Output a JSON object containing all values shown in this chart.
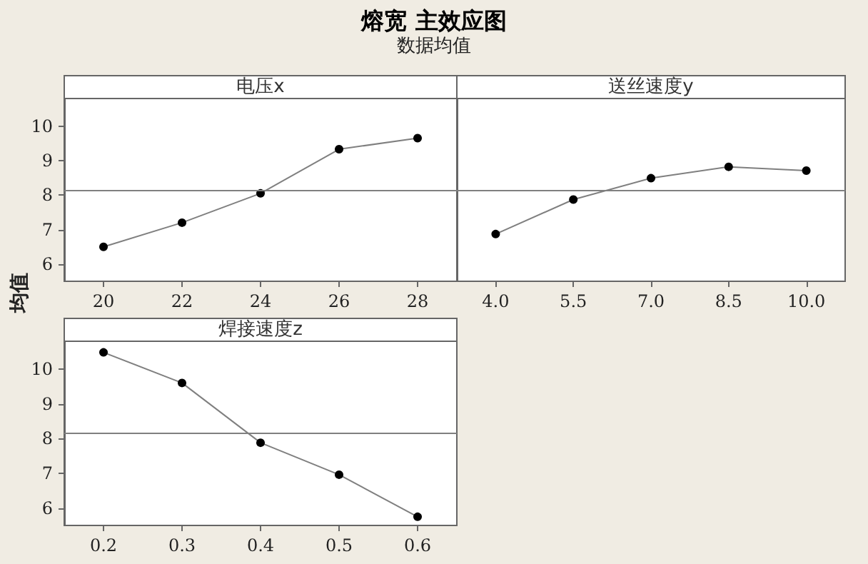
{
  "chart_data": [
    {
      "type": "other",
      "title": "熔宽 主效应图",
      "subtitle": "数据均值"
    },
    {
      "type": "line",
      "title": "电压x",
      "ylabel": "均值",
      "categories": [
        "20",
        "22",
        "24",
        "26",
        "28"
      ],
      "series": [
        {
          "color": "#000000",
          "values": [
            6.5,
            7.2,
            8.05,
            9.33,
            9.65
          ]
        }
      ],
      "ylim": [
        5.5,
        10.8
      ],
      "yticks": [
        6,
        7,
        8,
        9,
        10
      ],
      "ref_lines": [
        {
          "axis": "y",
          "value": 8.15,
          "color": "#808080"
        }
      ],
      "marker": "circle",
      "grid": false
    },
    {
      "type": "line",
      "title": "送丝速度y",
      "categories": [
        "4.0",
        "5.5",
        "7.0",
        "8.5",
        "10.0"
      ],
      "series": [
        {
          "color": "#000000",
          "values": [
            6.87,
            7.87,
            8.49,
            8.82,
            8.71
          ]
        }
      ],
      "ylim": [
        5.5,
        10.8
      ],
      "yticks": [
        6,
        7,
        8,
        9,
        10
      ],
      "ref_lines": [
        {
          "axis": "y",
          "value": 8.15,
          "color": "#808080"
        }
      ],
      "marker": "circle",
      "grid": false,
      "tick_labels": "x"
    },
    {
      "type": "line",
      "title": "焊接速度z",
      "categories": [
        "0.2",
        "0.3",
        "0.4",
        "0.5",
        "0.6"
      ],
      "series": [
        {
          "color": "#000000",
          "values": [
            10.48,
            9.6,
            7.88,
            6.96,
            5.75
          ]
        }
      ],
      "ylim": [
        5.5,
        10.8
      ],
      "yticks": [
        6,
        7,
        8,
        9,
        10
      ],
      "ref_lines": [
        {
          "axis": "y",
          "value": 8.15,
          "color": "#808080"
        }
      ],
      "marker": "circle",
      "grid": false
    }
  ]
}
